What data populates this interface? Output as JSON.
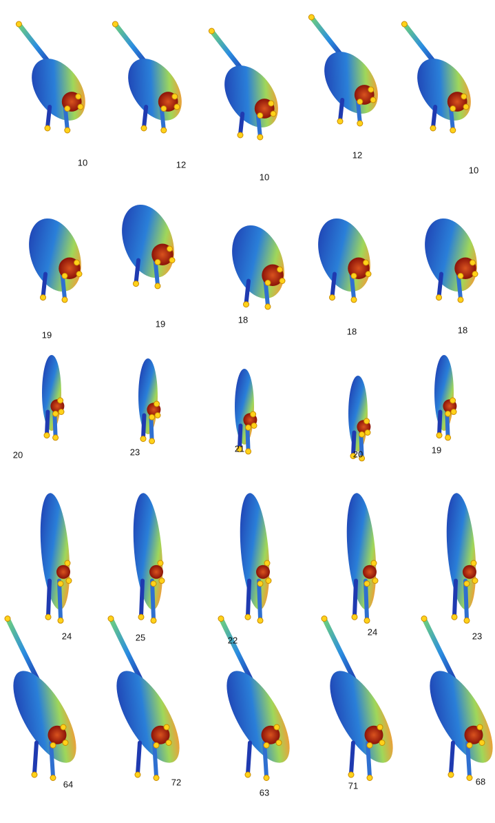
{
  "labels": [
    [
      "10",
      "12",
      "10",
      "12",
      "10"
    ],
    [
      "19",
      "19",
      "18",
      "18",
      "18"
    ],
    [
      "20",
      "23",
      "21",
      "20",
      "19"
    ],
    [
      "24",
      "25",
      "22",
      "24",
      "23"
    ],
    [
      "64",
      "72",
      "63",
      "71",
      "68"
    ]
  ]
}
